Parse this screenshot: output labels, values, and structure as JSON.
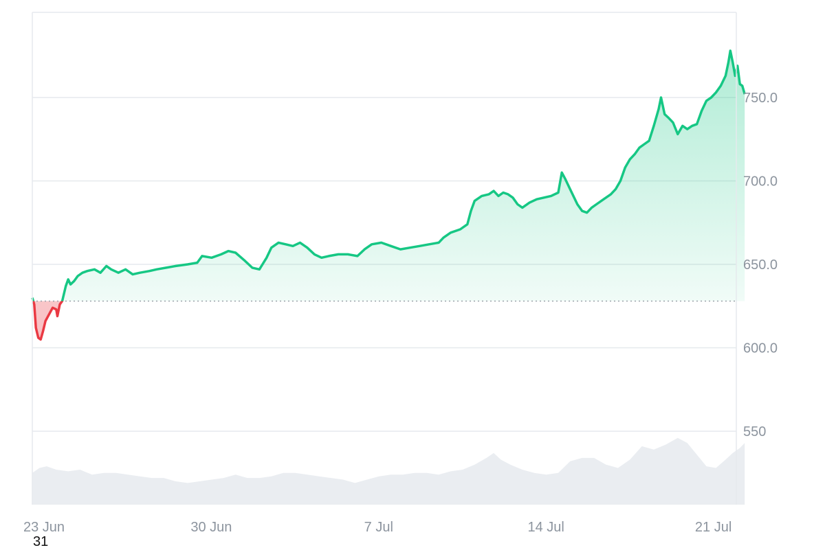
{
  "colors": {
    "up": "#16c784",
    "down": "#ea3943",
    "up_fill": "#16c784",
    "down_fill": "#ea3943",
    "volume": "#eaedf1",
    "grid": "#e6e9ed",
    "baseline": "#9aa1a9",
    "axis_text": "#8c949e"
  },
  "corner_label": "31",
  "chart_data": {
    "type": "area",
    "title": "",
    "xlabel": "",
    "ylabel": "",
    "x_ticks": [
      "23 Jun",
      "30 Jun",
      "7 Jul",
      "14 Jul",
      "21 Jul"
    ],
    "x_tick_days": [
      0,
      7,
      14,
      21,
      28
    ],
    "y_ticks": [
      "550",
      "600.0",
      "650.0",
      "700.0",
      "750.0"
    ],
    "y_tick_values": [
      550,
      600,
      650,
      700,
      750
    ],
    "ylim": [
      506,
      801
    ],
    "xlim_days": [
      0,
      29.45
    ],
    "baseline": 628,
    "grid": true,
    "series": [
      {
        "type": "line",
        "points": [
          [
            0.0,
            630
          ],
          [
            0.08,
            626
          ],
          [
            0.15,
            612
          ],
          [
            0.25,
            606
          ],
          [
            0.35,
            605
          ],
          [
            0.45,
            610
          ],
          [
            0.55,
            616
          ],
          [
            0.7,
            620
          ],
          [
            0.85,
            624
          ],
          [
            1.0,
            623
          ],
          [
            1.05,
            619
          ],
          [
            1.15,
            626
          ],
          [
            1.25,
            628
          ],
          [
            1.4,
            637
          ],
          [
            1.5,
            641
          ],
          [
            1.6,
            638
          ],
          [
            1.75,
            640
          ],
          [
            1.9,
            643
          ],
          [
            2.1,
            645
          ],
          [
            2.3,
            646
          ],
          [
            2.6,
            647
          ],
          [
            2.85,
            645
          ],
          [
            3.1,
            649
          ],
          [
            3.3,
            647
          ],
          [
            3.6,
            645
          ],
          [
            3.9,
            647
          ],
          [
            4.2,
            644
          ],
          [
            4.5,
            645
          ],
          [
            4.9,
            646
          ],
          [
            5.2,
            647
          ],
          [
            5.6,
            648
          ],
          [
            6.0,
            649
          ],
          [
            6.5,
            650
          ],
          [
            6.9,
            651
          ],
          [
            7.1,
            655
          ],
          [
            7.5,
            654
          ],
          [
            7.9,
            656
          ],
          [
            8.2,
            658
          ],
          [
            8.5,
            657
          ],
          [
            8.9,
            652
          ],
          [
            9.2,
            648
          ],
          [
            9.5,
            647
          ],
          [
            9.8,
            654
          ],
          [
            10.0,
            660
          ],
          [
            10.3,
            663
          ],
          [
            10.6,
            662
          ],
          [
            10.9,
            661
          ],
          [
            11.2,
            663
          ],
          [
            11.5,
            660
          ],
          [
            11.8,
            656
          ],
          [
            12.1,
            654
          ],
          [
            12.4,
            655
          ],
          [
            12.8,
            656
          ],
          [
            13.2,
            656
          ],
          [
            13.6,
            655
          ],
          [
            13.9,
            659
          ],
          [
            14.2,
            662
          ],
          [
            14.6,
            663
          ],
          [
            15.0,
            661
          ],
          [
            15.4,
            659
          ],
          [
            15.8,
            660
          ],
          [
            16.2,
            661
          ],
          [
            16.6,
            662
          ],
          [
            17.0,
            663
          ],
          [
            17.2,
            666
          ],
          [
            17.5,
            669
          ],
          [
            17.9,
            671
          ],
          [
            18.2,
            674
          ],
          [
            18.35,
            682
          ],
          [
            18.5,
            688
          ],
          [
            18.8,
            691
          ],
          [
            19.1,
            692
          ],
          [
            19.3,
            694
          ],
          [
            19.5,
            691
          ],
          [
            19.7,
            693
          ],
          [
            19.9,
            692
          ],
          [
            20.1,
            690
          ],
          [
            20.3,
            686
          ],
          [
            20.5,
            684
          ],
          [
            20.8,
            687
          ],
          [
            21.1,
            689
          ],
          [
            21.4,
            690
          ],
          [
            21.7,
            691
          ],
          [
            22.0,
            693
          ],
          [
            22.15,
            705
          ],
          [
            22.3,
            701
          ],
          [
            22.5,
            695
          ],
          [
            22.8,
            686
          ],
          [
            23.0,
            682
          ],
          [
            23.2,
            681
          ],
          [
            23.4,
            684
          ],
          [
            23.6,
            686
          ],
          [
            23.9,
            689
          ],
          [
            24.2,
            692
          ],
          [
            24.4,
            695
          ],
          [
            24.6,
            700
          ],
          [
            24.8,
            708
          ],
          [
            25.0,
            713
          ],
          [
            25.2,
            716
          ],
          [
            25.4,
            720
          ],
          [
            25.6,
            722
          ],
          [
            25.8,
            724
          ],
          [
            26.0,
            733
          ],
          [
            26.2,
            743
          ],
          [
            26.3,
            750
          ],
          [
            26.45,
            740
          ],
          [
            26.6,
            738
          ],
          [
            26.8,
            735
          ],
          [
            27.0,
            728
          ],
          [
            27.2,
            733
          ],
          [
            27.4,
            731
          ],
          [
            27.6,
            733
          ],
          [
            27.8,
            734
          ],
          [
            28.0,
            742
          ],
          [
            28.2,
            748
          ],
          [
            28.4,
            750
          ],
          [
            28.6,
            753
          ],
          [
            28.8,
            757
          ],
          [
            29.0,
            763
          ],
          [
            29.12,
            771
          ],
          [
            29.2,
            778
          ],
          [
            29.3,
            771
          ],
          [
            29.4,
            763
          ],
          [
            29.5,
            769
          ],
          [
            29.6,
            758
          ],
          [
            29.7,
            757
          ],
          [
            29.8,
            752
          ]
        ]
      },
      {
        "type": "volume",
        "points": [
          [
            0.0,
            525
          ],
          [
            0.3,
            528
          ],
          [
            0.6,
            529
          ],
          [
            1.0,
            527
          ],
          [
            1.5,
            526
          ],
          [
            2.0,
            527
          ],
          [
            2.5,
            524
          ],
          [
            3.0,
            525
          ],
          [
            3.5,
            525
          ],
          [
            4.0,
            524
          ],
          [
            4.5,
            523
          ],
          [
            5.0,
            522
          ],
          [
            5.5,
            522
          ],
          [
            6.0,
            520
          ],
          [
            6.5,
            519
          ],
          [
            7.0,
            520
          ],
          [
            7.5,
            521
          ],
          [
            8.0,
            522
          ],
          [
            8.5,
            524
          ],
          [
            9.0,
            522
          ],
          [
            9.5,
            522
          ],
          [
            10.0,
            523
          ],
          [
            10.5,
            525
          ],
          [
            11.0,
            525
          ],
          [
            11.5,
            524
          ],
          [
            12.0,
            523
          ],
          [
            12.5,
            522
          ],
          [
            13.0,
            521
          ],
          [
            13.5,
            519
          ],
          [
            14.0,
            521
          ],
          [
            14.5,
            523
          ],
          [
            15.0,
            524
          ],
          [
            15.5,
            524
          ],
          [
            16.0,
            525
          ],
          [
            16.5,
            525
          ],
          [
            17.0,
            524
          ],
          [
            17.5,
            526
          ],
          [
            18.0,
            527
          ],
          [
            18.5,
            530
          ],
          [
            19.0,
            534
          ],
          [
            19.3,
            537
          ],
          [
            19.6,
            533
          ],
          [
            20.0,
            530
          ],
          [
            20.5,
            527
          ],
          [
            21.0,
            525
          ],
          [
            21.5,
            524
          ],
          [
            22.0,
            525
          ],
          [
            22.5,
            532
          ],
          [
            23.0,
            534
          ],
          [
            23.5,
            534
          ],
          [
            24.0,
            530
          ],
          [
            24.5,
            528
          ],
          [
            25.0,
            533
          ],
          [
            25.5,
            541
          ],
          [
            26.0,
            539
          ],
          [
            26.5,
            542
          ],
          [
            27.0,
            546
          ],
          [
            27.4,
            543
          ],
          [
            27.8,
            536
          ],
          [
            28.2,
            529
          ],
          [
            28.6,
            528
          ],
          [
            29.0,
            533
          ],
          [
            29.3,
            537
          ],
          [
            29.6,
            540
          ],
          [
            29.8,
            543
          ]
        ]
      }
    ]
  }
}
